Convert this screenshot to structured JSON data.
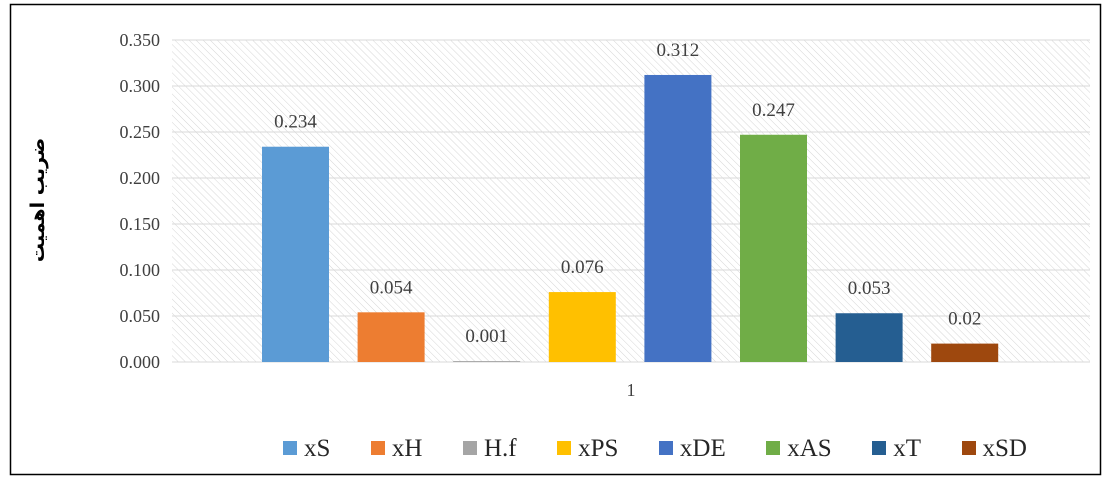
{
  "chart_data": {
    "type": "bar",
    "categories": [
      "1"
    ],
    "series": [
      {
        "name": "xS",
        "values": [
          0.234
        ],
        "label": "0.234",
        "color": "#5B9BD5"
      },
      {
        "name": "xH",
        "values": [
          0.054
        ],
        "label": "0.054",
        "color": "#ED7D31"
      },
      {
        "name": "H.f",
        "values": [
          0.001
        ],
        "label": "0.001",
        "color": "#A5A5A5"
      },
      {
        "name": "xPS",
        "values": [
          0.076
        ],
        "label": "0.076",
        "color": "#FFC000"
      },
      {
        "name": "xDE",
        "values": [
          0.312
        ],
        "label": "0.312",
        "color": "#4472C4"
      },
      {
        "name": "xAS",
        "values": [
          0.247
        ],
        "label": "0.247",
        "color": "#70AD47"
      },
      {
        "name": "xT",
        "values": [
          0.053
        ],
        "label": "0.053",
        "color": "#255E91"
      },
      {
        "name": "xSD",
        "values": [
          0.02
        ],
        "label": "0.02",
        "color": "#9E480E"
      }
    ],
    "ylabel": "ضریب اهمیت",
    "ylim": [
      0,
      0.35
    ],
    "yticks": [
      "0.000",
      "0.050",
      "0.100",
      "0.150",
      "0.200",
      "0.250",
      "0.300",
      "0.350"
    ],
    "grid": true,
    "legend": "bottom"
  }
}
